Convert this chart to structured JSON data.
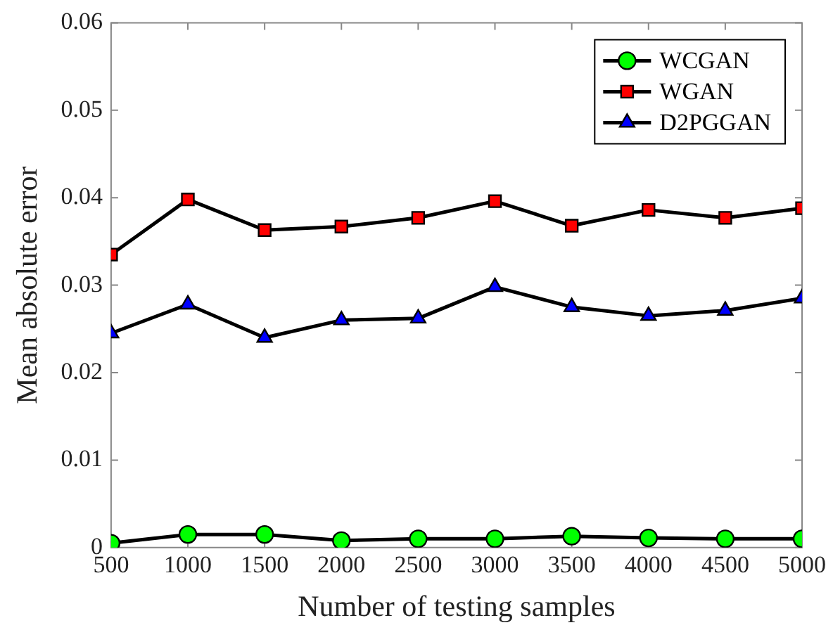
{
  "chart_data": {
    "type": "line",
    "xlabel": "Number of testing samples",
    "ylabel": "Mean absolute error",
    "x": [
      500,
      1000,
      1500,
      2000,
      2500,
      3000,
      3500,
      4000,
      4500,
      5000
    ],
    "xlim": [
      500,
      5000
    ],
    "xticks": [
      500,
      1000,
      1500,
      2000,
      2500,
      3000,
      3500,
      4000,
      4500,
      5000
    ],
    "ylim": [
      0,
      0.06
    ],
    "yticks": [
      0,
      0.01,
      0.02,
      0.03,
      0.04,
      0.05,
      0.06
    ],
    "grid": false,
    "legend": "top right",
    "line_style": "solid",
    "series": [
      {
        "name": "WCGAN",
        "color": "#00ff00",
        "marker": "circle",
        "values": [
          0.0005,
          0.0015,
          0.0015,
          0.0008,
          0.001,
          0.001,
          0.0013,
          0.0011,
          0.001,
          0.001
        ]
      },
      {
        "name": "WGAN",
        "color": "#ff0000",
        "marker": "square",
        "values": [
          0.0335,
          0.0398,
          0.0363,
          0.0367,
          0.0377,
          0.0396,
          0.0368,
          0.0386,
          0.0377,
          0.0388
        ]
      },
      {
        "name": "D2PGGAN",
        "color": "#0000ff",
        "marker": "triangle",
        "values": [
          0.0245,
          0.0278,
          0.024,
          0.026,
          0.0262,
          0.0298,
          0.0275,
          0.0265,
          0.0271,
          0.0285
        ]
      }
    ]
  }
}
